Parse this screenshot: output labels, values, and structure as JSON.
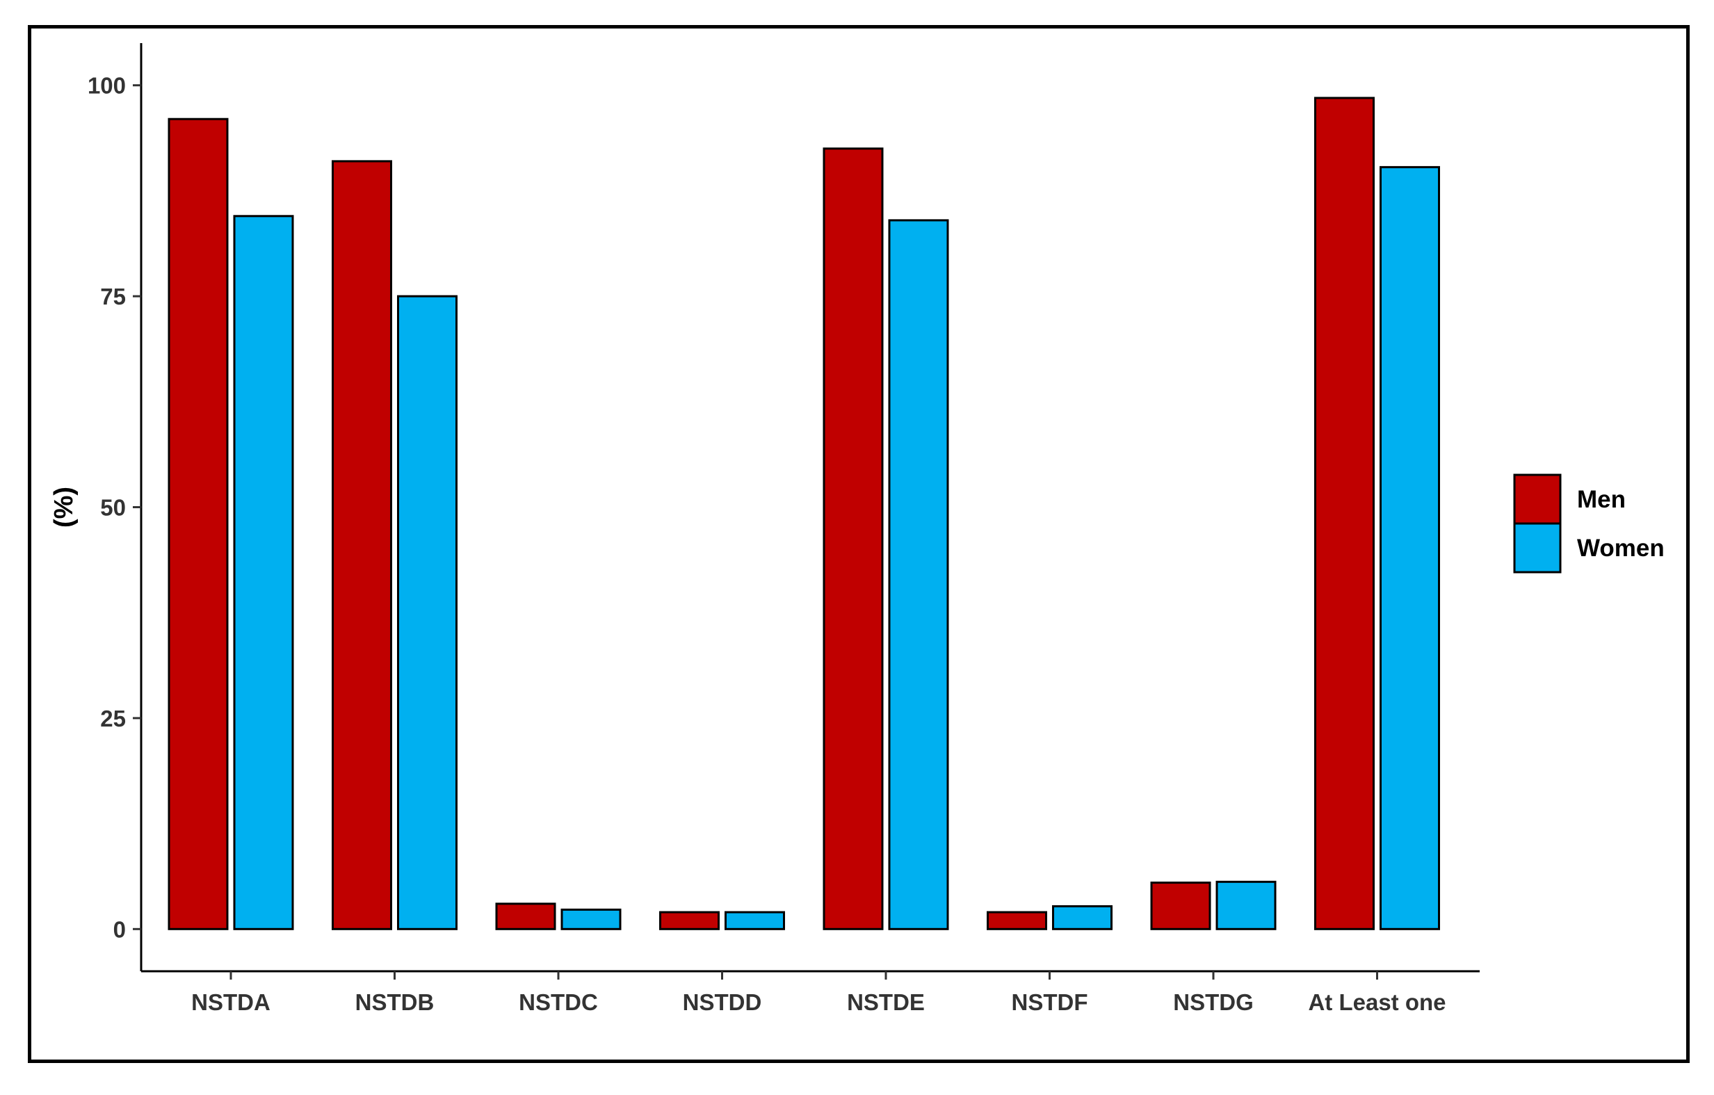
{
  "chart_data": {
    "type": "bar",
    "categories": [
      "NSTDA",
      "NSTDB",
      "NSTDC",
      "NSTDD",
      "NSTDE",
      "NSTDF",
      "NSTDG",
      "At Least one"
    ],
    "series": [
      {
        "name": "Men",
        "color": "#c00000",
        "values": [
          96,
          91,
          3,
          2,
          92.5,
          2,
          5.5,
          98.5
        ]
      },
      {
        "name": "Women",
        "color": "#00b0f0",
        "values": [
          84.5,
          75,
          2.3,
          2,
          84,
          2.7,
          5.6,
          90.3
        ]
      }
    ],
    "title": "",
    "xlabel": "",
    "ylabel": "(%)",
    "ylim": [
      -5,
      105
    ],
    "yticks": [
      "0",
      "25",
      "50",
      "75",
      "100"
    ],
    "grid": false,
    "legend_position": "right"
  }
}
